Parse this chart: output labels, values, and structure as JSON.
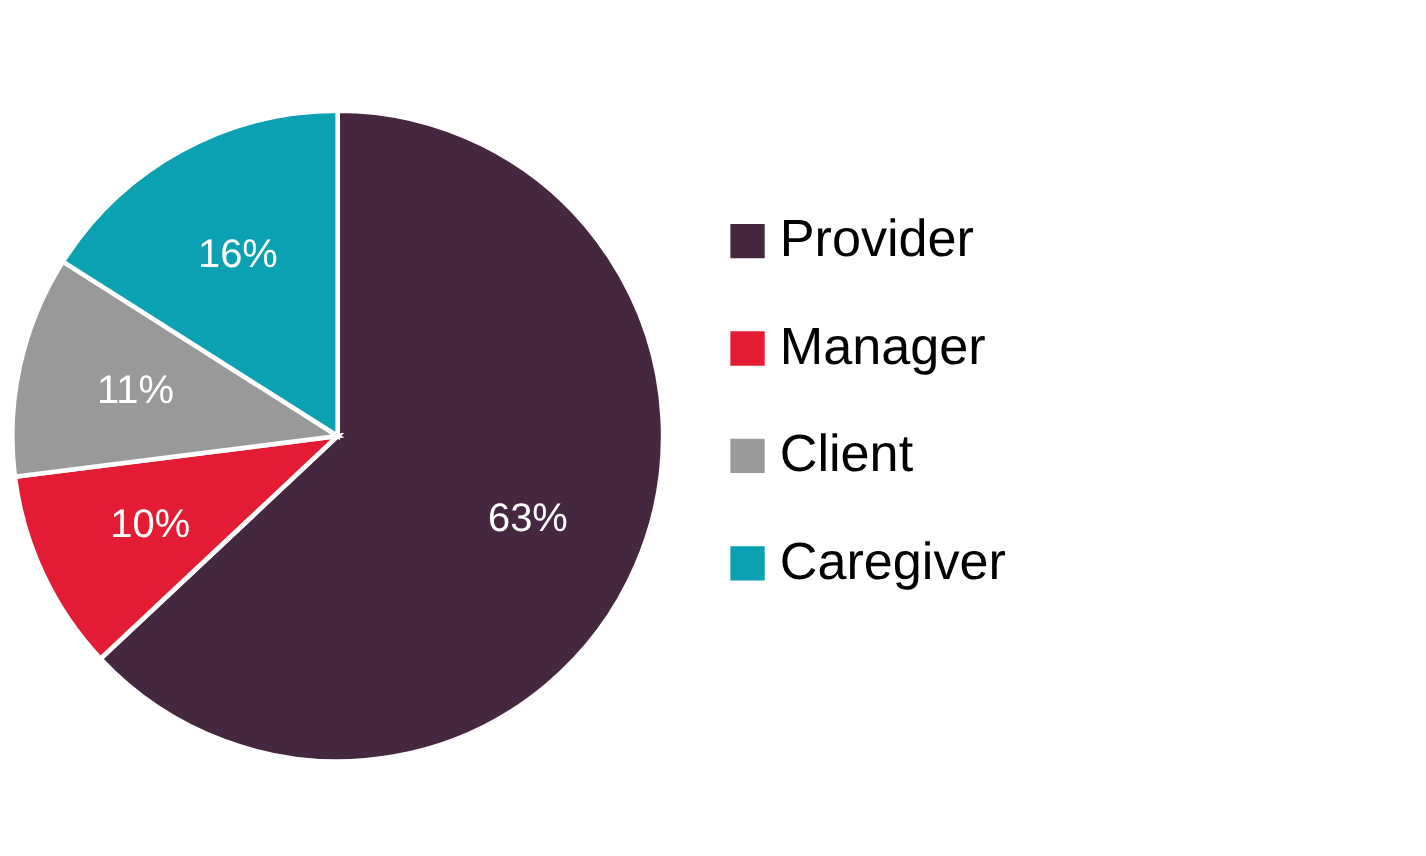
{
  "chart_data": {
    "type": "pie",
    "categories": [
      "Provider",
      "Manager",
      "Client",
      "Caregiver"
    ],
    "values": [
      63,
      10,
      11,
      16
    ],
    "value_labels": [
      "63%",
      "10%",
      "11%",
      "16%"
    ],
    "colors": [
      "#45273f",
      "#e31b33",
      "#999999",
      "#0aa1b3"
    ],
    "legend": "right"
  }
}
